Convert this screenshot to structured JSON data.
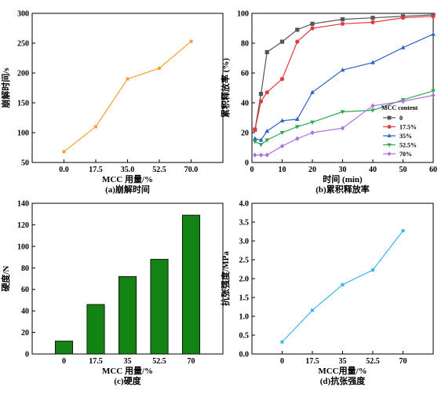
{
  "chart_data": [
    {
      "id": "a",
      "type": "line",
      "caption": "(a)崩解时间",
      "xlabel": "MCC 用量/%",
      "ylabel": "崩解时间/s",
      "categories": [
        "0.0",
        "17.5",
        "35.0",
        "52.5",
        "70.0"
      ],
      "x": [
        0,
        17.5,
        35,
        52.5,
        70
      ],
      "values": [
        68,
        110,
        190,
        208,
        253
      ],
      "ylim": [
        50,
        300
      ],
      "yticks": [
        "50",
        "100",
        "150",
        "200",
        "250",
        "300"
      ],
      "color": "#f5a030"
    },
    {
      "id": "b",
      "type": "line",
      "caption": "(b)累积释放率",
      "xlabel": "时间 (min)",
      "ylabel": "累积释放率 (%)",
      "xlim": [
        0,
        60
      ],
      "ylim": [
        0,
        100
      ],
      "xticks": [
        "0",
        "10",
        "20",
        "30",
        "40",
        "50",
        "60"
      ],
      "yticks": [
        "0",
        "20",
        "40",
        "60",
        "80",
        "100"
      ],
      "legend_title": "MCC content",
      "legend_position": "bottom-right",
      "series": [
        {
          "name": "0",
          "color": "#555555",
          "marker": "square",
          "x": [
            1,
            3,
            5,
            10,
            15,
            20,
            30,
            40,
            50,
            60
          ],
          "y": [
            22,
            46,
            74,
            81,
            89,
            93,
            96,
            97,
            98,
            99
          ]
        },
        {
          "name": "17.5%",
          "color": "#e83a3a",
          "marker": "circle",
          "x": [
            1,
            3,
            5,
            10,
            15,
            20,
            30,
            40,
            50,
            60
          ],
          "y": [
            22,
            41,
            47,
            56,
            81,
            90,
            93,
            94,
            97,
            98
          ]
        },
        {
          "name": "35%",
          "color": "#2f62c8",
          "marker": "triangle-up",
          "x": [
            1,
            3,
            5,
            10,
            15,
            20,
            30,
            40,
            50,
            60
          ],
          "y": [
            16,
            15,
            21,
            28,
            29,
            47,
            62,
            67,
            77,
            86
          ]
        },
        {
          "name": "52.5%",
          "color": "#2ea84f",
          "marker": "triangle-down",
          "x": [
            1,
            3,
            5,
            10,
            15,
            20,
            30,
            40,
            50,
            60
          ],
          "y": [
            14,
            12,
            15,
            20,
            24,
            27,
            34,
            35,
            42,
            48
          ]
        },
        {
          "name": "70%",
          "color": "#b26de0",
          "marker": "diamond",
          "x": [
            1,
            3,
            5,
            10,
            15,
            20,
            30,
            40,
            50,
            60
          ],
          "y": [
            5,
            5,
            5,
            11,
            16,
            20,
            23,
            38,
            41,
            45
          ]
        }
      ]
    },
    {
      "id": "c",
      "type": "bar",
      "caption": "(c)硬度",
      "xlabel": "MCC 用量/%",
      "ylabel": "硬度/N",
      "categories": [
        "0",
        "17.5",
        "35",
        "52.5",
        "70"
      ],
      "values": [
        12,
        46,
        72,
        88,
        129
      ],
      "ylim": [
        0,
        140
      ],
      "yticks": [
        "0",
        "20",
        "40",
        "60",
        "80",
        "100",
        "120",
        "140"
      ],
      "color": "#138313"
    },
    {
      "id": "d",
      "type": "line",
      "caption": "(d)抗张强度",
      "xlabel": "MCC用量/%",
      "ylabel": "抗张强度/MPa",
      "categories": [
        "0",
        "17.5",
        "35",
        "52.5",
        "70"
      ],
      "x": [
        0,
        17.5,
        35,
        52.5,
        70
      ],
      "values": [
        0.32,
        1.16,
        1.84,
        2.23,
        3.27
      ],
      "ylim": [
        0,
        4.0
      ],
      "yticks": [
        "0.0",
        "0.5",
        "1.0",
        "1.5",
        "2.0",
        "2.5",
        "3.0",
        "3.5",
        "4.0"
      ],
      "color": "#3fb6ee"
    }
  ]
}
